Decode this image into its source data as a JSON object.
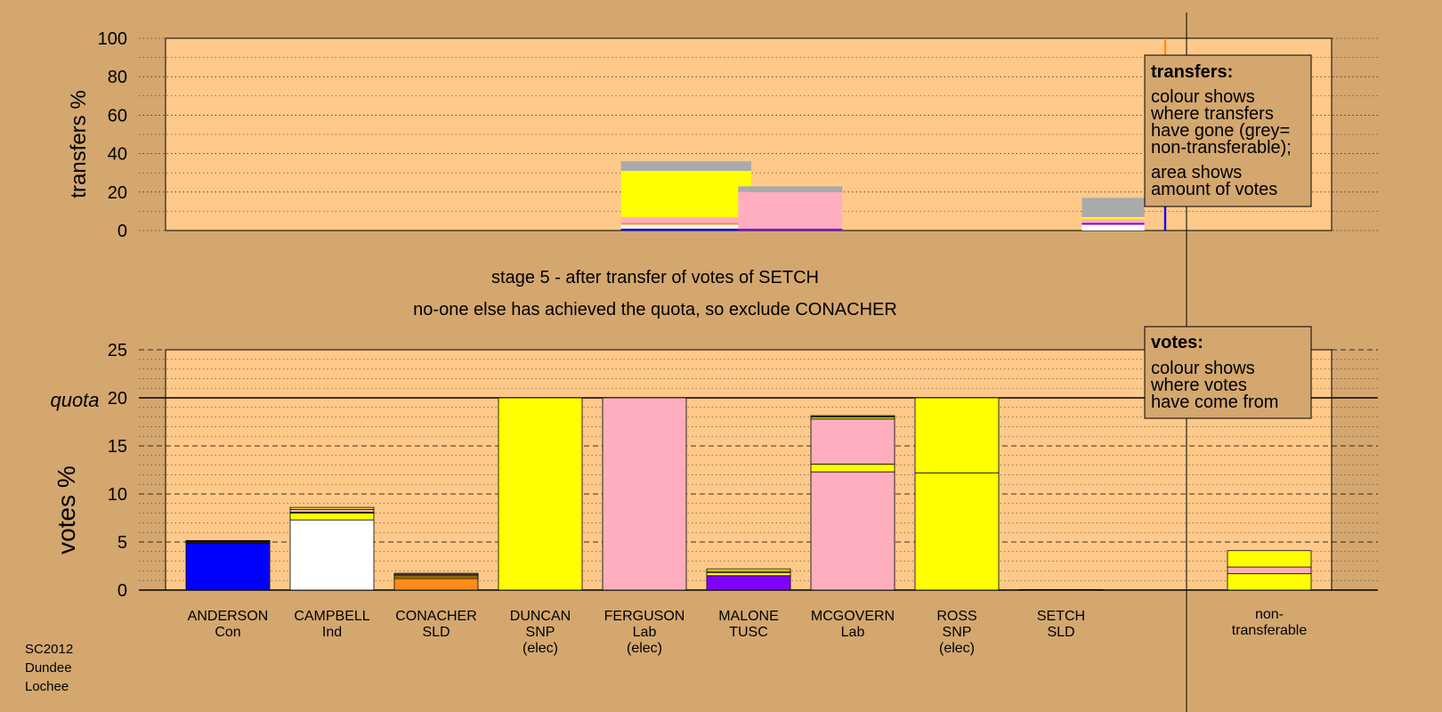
{
  "colors": {
    "background": "#d4a76f",
    "plot_background": "#ffc98a",
    "Con": "#0000ff",
    "Ind": "#ffffff",
    "SLD": "#ff8c1a",
    "SNP": "#ffff00",
    "Lab": "#ffaec0",
    "TUSC": "#8000ff",
    "nontransferable": "#aaaaaa"
  },
  "header": {
    "stage": "stage 5 - after transfer of votes of SETCH",
    "note": "no-one else has achieved the quota, so exclude CONACHER"
  },
  "footer": {
    "lines": [
      "SC2012",
      "Dundee",
      "Lochee"
    ]
  },
  "legend_transfers": {
    "title": "transfers:",
    "lines": [
      "colour shows",
      "where transfers",
      "have gone (grey=",
      "non-transferable);",
      "area shows",
      "amount of votes"
    ]
  },
  "legend_votes": {
    "title": "votes:",
    "lines": [
      "colour shows",
      "where votes",
      "have come from"
    ]
  },
  "chart_data": [
    {
      "type": "bar",
      "name": "transfers",
      "ylabel": "transfers %",
      "ylim": [
        0,
        100
      ],
      "yticks": [
        0,
        20,
        40,
        60,
        80,
        100
      ],
      "grid": true,
      "bars": [
        {
          "pos": 4.4,
          "width": 1.25,
          "segments": [
            {
              "party": "Con",
              "value": 1
            },
            {
              "party": "Ind",
              "value": 2
            },
            {
              "party": "SLD",
              "value": 1
            },
            {
              "party": "Lab",
              "value": 3
            },
            {
              "party": "SNP",
              "value": 24
            },
            {
              "party": "nontransferable",
              "value": 5
            }
          ]
        },
        {
          "pos": 5.4,
          "width": 1.0,
          "segments": [
            {
              "party": "TUSC",
              "value": 1
            },
            {
              "party": "Lab",
              "value": 19
            },
            {
              "party": "nontransferable",
              "value": 3
            }
          ]
        },
        {
          "pos": 8.5,
          "width": 0.6,
          "segments": [
            {
              "party": "Ind",
              "value": 3
            },
            {
              "party": "TUSC",
              "value": 1
            },
            {
              "party": "Lab",
              "value": 2
            },
            {
              "party": "SNP",
              "value": 1
            },
            {
              "party": "nontransferable",
              "value": 10
            }
          ]
        },
        {
          "pos": 9.0,
          "width": 0.02,
          "segments": [
            {
              "party": "Con",
              "value": 13
            },
            {
              "party": "Ind",
              "value": 14
            },
            {
              "party": "SLD",
              "value": 73
            }
          ]
        }
      ]
    },
    {
      "type": "bar",
      "name": "votes",
      "ylabel": "votes %",
      "ylim": [
        0,
        25
      ],
      "yticks": [
        0,
        5,
        10,
        15,
        20,
        25
      ],
      "quota": 20,
      "quota_label": "quota",
      "grid": true,
      "categories": [
        {
          "name": "ANDERSON",
          "party": "Con",
          "extra": ""
        },
        {
          "name": "CAMPBELL",
          "party": "Ind",
          "extra": ""
        },
        {
          "name": "CONACHER",
          "party": "SLD",
          "extra": ""
        },
        {
          "name": "DUNCAN",
          "party": "SNP",
          "extra": "(elec)"
        },
        {
          "name": "FERGUSON",
          "party": "Lab",
          "extra": "(elec)"
        },
        {
          "name": "MALONE",
          "party": "TUSC",
          "extra": ""
        },
        {
          "name": "MCGOVERN",
          "party": "Lab",
          "extra": ""
        },
        {
          "name": "ROSS",
          "party": "SNP",
          "extra": "(elec)"
        },
        {
          "name": "SETCH",
          "party": "SLD",
          "extra": ""
        }
      ],
      "nontransferable_label": [
        "non-",
        "transferable"
      ],
      "bars": [
        [
          {
            "party": "Con",
            "value": 4.9
          },
          {
            "party": "Ind",
            "value": 0.05
          },
          {
            "party": "SLD",
            "value": 0.1
          },
          {
            "party": "SNP",
            "value": 0.05
          },
          {
            "party": "Lab",
            "value": 0.05
          }
        ],
        [
          {
            "party": "Ind",
            "value": 7.3
          },
          {
            "party": "SNP",
            "value": 0.7
          },
          {
            "party": "SLD",
            "value": 0.1
          },
          {
            "party": "Lab",
            "value": 0.3
          },
          {
            "party": "SNP",
            "value": 0.2
          }
        ],
        [
          {
            "party": "SLD",
            "value": 1.2
          },
          {
            "party": "SLD",
            "value": 0.2
          },
          {
            "party": "SNP",
            "value": 0.15
          },
          {
            "party": "Lab",
            "value": 0.1
          },
          {
            "party": "SNP",
            "value": 0.1
          }
        ],
        [
          {
            "party": "SNP",
            "value": 20
          }
        ],
        [
          {
            "party": "Lab",
            "value": 20
          }
        ],
        [
          {
            "party": "TUSC",
            "value": 1.5
          },
          {
            "party": "SNP",
            "value": 0.3
          },
          {
            "party": "Lab",
            "value": 0.15
          },
          {
            "party": "SNP",
            "value": 0.25
          }
        ],
        [
          {
            "party": "Lab",
            "value": 12.3
          },
          {
            "party": "SNP",
            "value": 0.8
          },
          {
            "party": "Lab",
            "value": 4.7
          },
          {
            "party": "SNP",
            "value": 0.2
          },
          {
            "party": "Lab",
            "value": 0.05
          },
          {
            "party": "SNP",
            "value": 0.1
          }
        ],
        [
          {
            "party": "SNP",
            "value": 12.2
          },
          {
            "party": "SNP",
            "value": 7.8
          }
        ],
        [
          {
            "party": "SLD",
            "value": 0.05
          }
        ]
      ],
      "nontransferable_bar": [
        {
          "party": "SNP",
          "value": 1.7
        },
        {
          "party": "Lab",
          "value": 0.7
        },
        {
          "party": "SNP",
          "value": 1.7
        }
      ]
    }
  ]
}
